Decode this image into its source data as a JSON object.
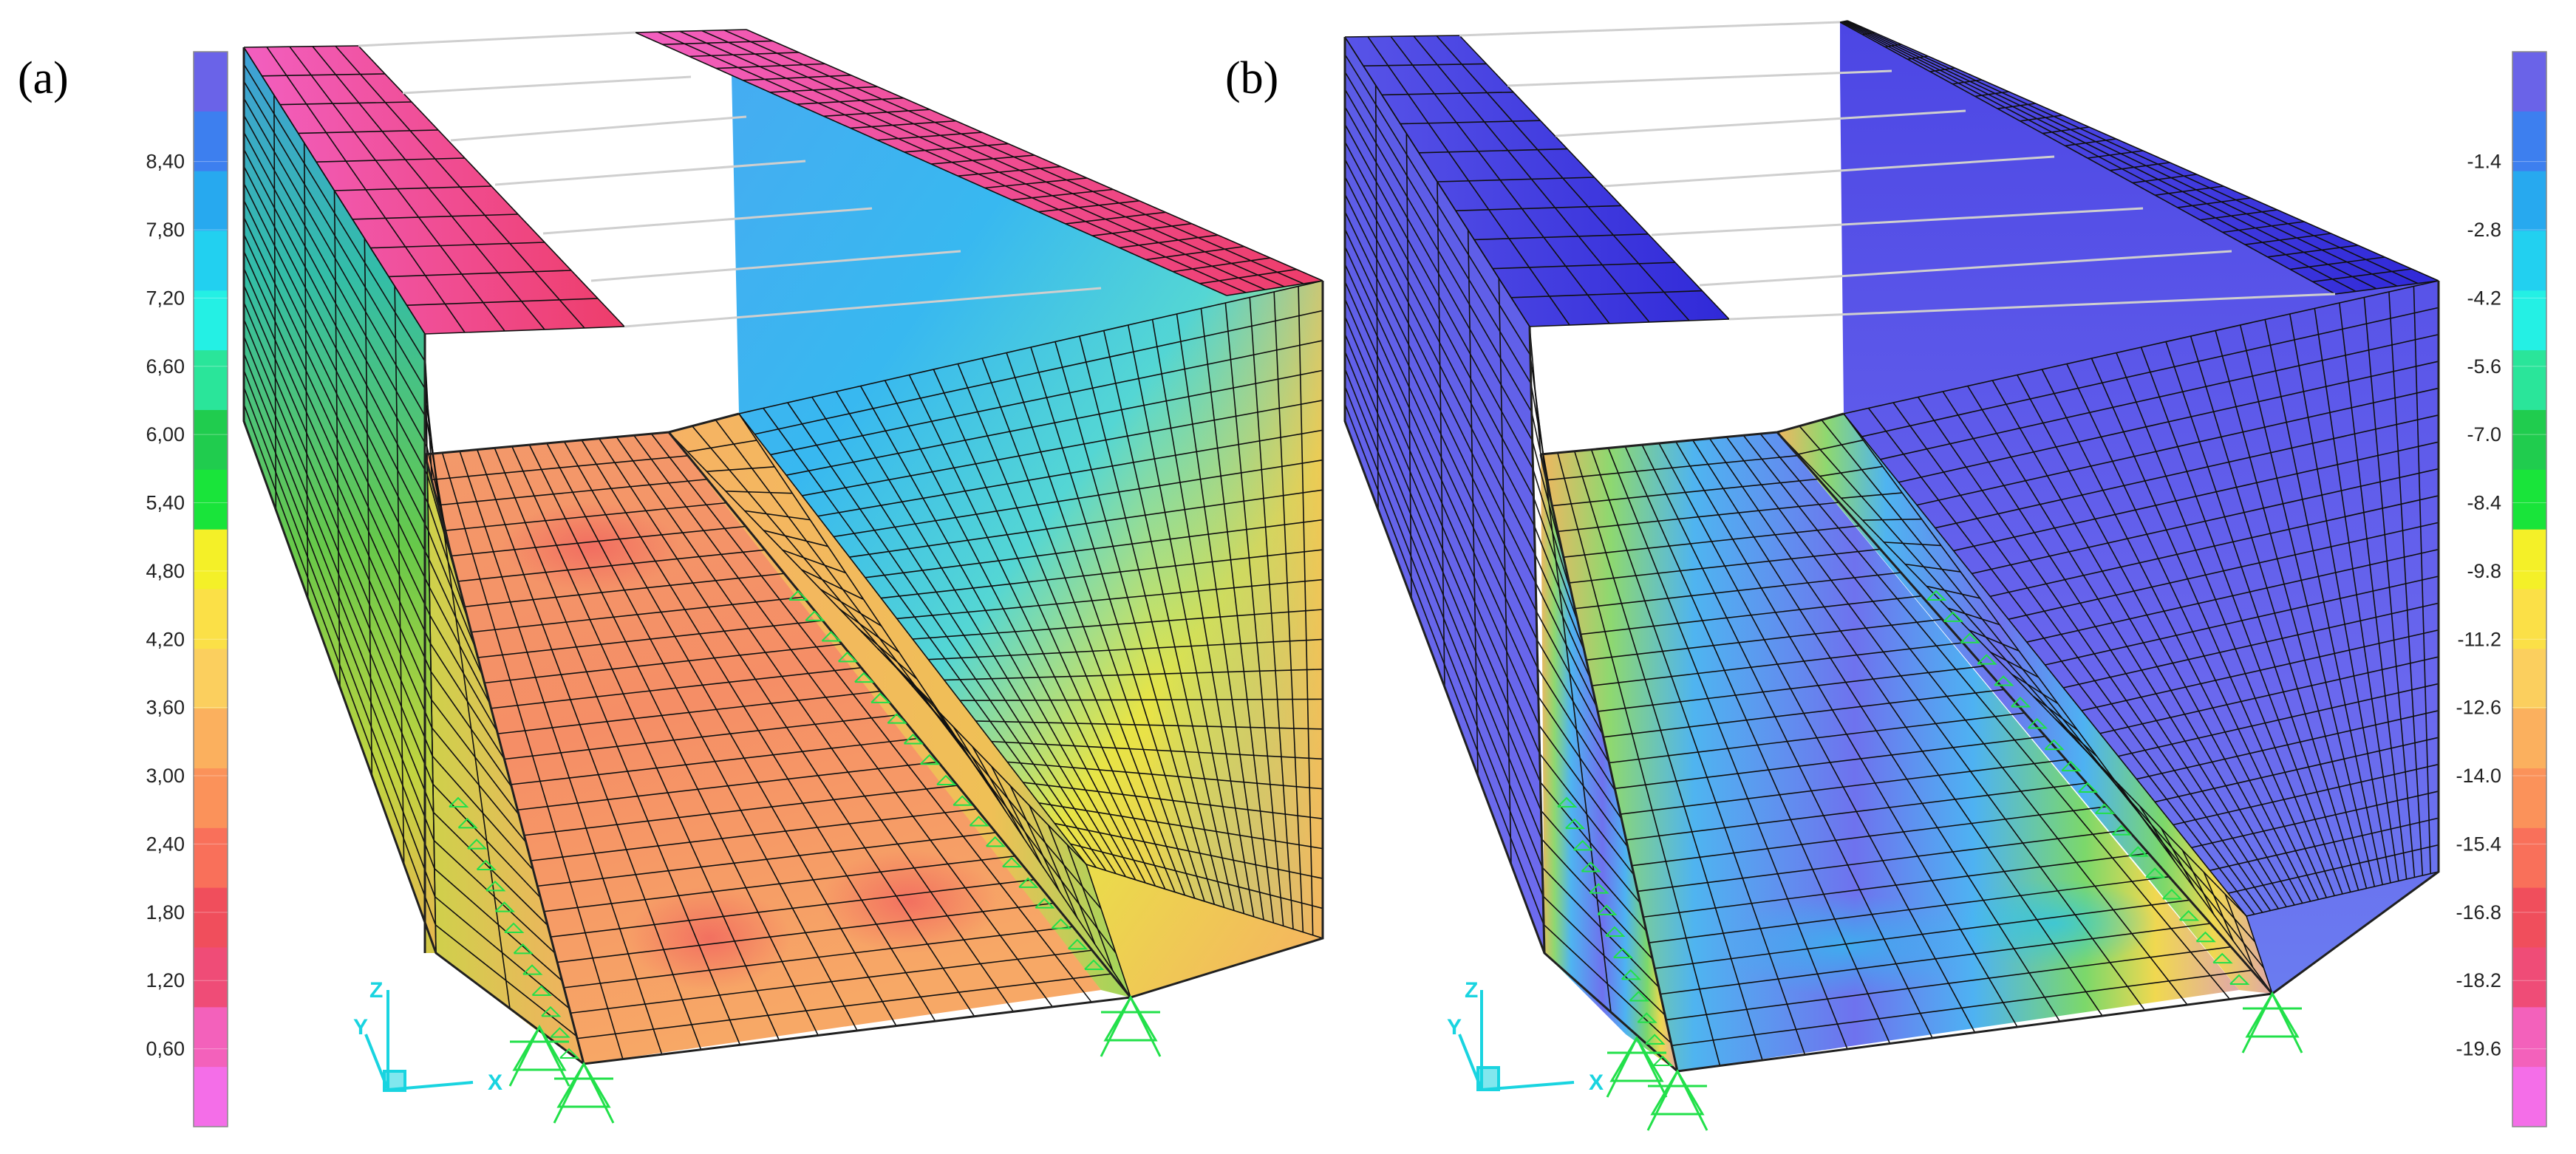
{
  "panels": [
    {
      "id": "a",
      "label": "(a)",
      "scale_side": "left",
      "scale_labels": [
        "8,40",
        "7,80",
        "7,20",
        "6,60",
        "6,00",
        "5,40",
        "4,80",
        "4,20",
        "3,60",
        "3,00",
        "2,40",
        "1,80",
        "1,20",
        "0,60"
      ],
      "scale_colors": [
        "#6a63e8",
        "#3d7fef",
        "#27a9ef",
        "#22d0f0",
        "#24f0e4",
        "#2ae59a",
        "#20cc4e",
        "#19e43a",
        "#f4f028",
        "#fbe047",
        "#fbcf5e",
        "#fbb05e",
        "#fb925a",
        "#f9705a",
        "#f04e5c",
        "#ef4c77",
        "#f361bb",
        "#f46ee8"
      ],
      "dominant_colors": {
        "floor": "#f79a66",
        "wall_far": "#5fb6f0",
        "wall_near": "#f0a763",
        "top_flange": "#f0509a"
      }
    },
    {
      "id": "b",
      "label": "(b)",
      "scale_side": "right",
      "scale_labels": [
        "-1.4",
        "-2.8",
        "-4.2",
        "-5.6",
        "-7.0",
        "-8.4",
        "-9.8",
        "-11.2",
        "-12.6",
        "-14.0",
        "-15.4",
        "-16.8",
        "-18.2",
        "-19.6"
      ],
      "scale_colors": [
        "#6a63e8",
        "#3d7fef",
        "#27a9ef",
        "#22d0f0",
        "#24f0e4",
        "#2ae59a",
        "#20cc4e",
        "#19e43a",
        "#f4f028",
        "#fbe047",
        "#fbcf5e",
        "#fbb05e",
        "#fb925a",
        "#f9705a",
        "#f04e5c",
        "#ef4c77",
        "#f361bb",
        "#f46ee8"
      ],
      "dominant_colors": {
        "floor": "#6a68ee",
        "wall_far": "#6466ea",
        "wall_near": "#6a68ee",
        "top_flange": "#3a33dc"
      }
    }
  ],
  "axes_triad": {
    "x": "X",
    "y": "Y",
    "z": "Z",
    "color": "#19d4e0"
  },
  "support_color": "#22e04a",
  "mesh_color": "#101010"
}
